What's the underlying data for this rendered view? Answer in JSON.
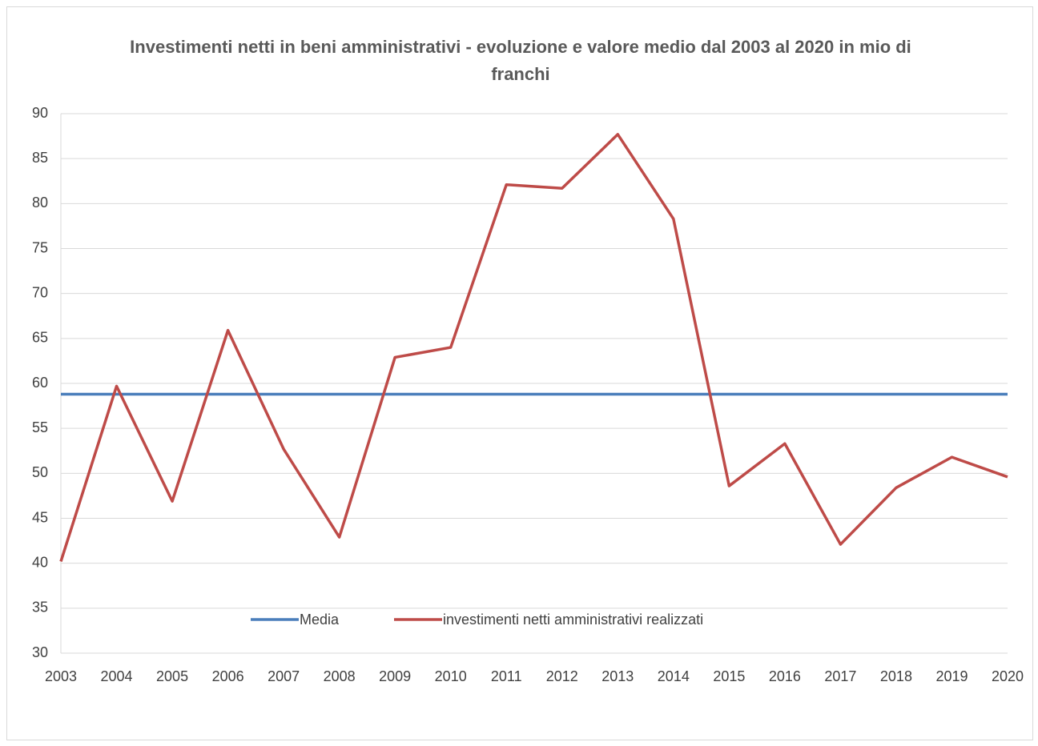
{
  "chart_data": {
    "type": "line",
    "title": "Investimenti netti in beni amministrativi - evoluzione e valore medio dal 2003 al 2020 in mio di franchi",
    "x": [
      2003,
      2004,
      2005,
      2006,
      2007,
      2008,
      2009,
      2010,
      2011,
      2012,
      2013,
      2014,
      2015,
      2016,
      2017,
      2018,
      2019,
      2020
    ],
    "xlim": [
      2003,
      2020
    ],
    "xticks": [
      2003,
      2004,
      2005,
      2006,
      2007,
      2008,
      2009,
      2010,
      2011,
      2012,
      2013,
      2014,
      2015,
      2016,
      2017,
      2018,
      2019,
      2020
    ],
    "ylim": [
      30,
      90
    ],
    "yticks": [
      30,
      35,
      40,
      45,
      50,
      55,
      60,
      65,
      70,
      75,
      80,
      85,
      90
    ],
    "grid": true,
    "legend": "bottom",
    "series": [
      {
        "name": "Media",
        "color": "#4a7ebb",
        "values": [
          58.8,
          58.8,
          58.8,
          58.8,
          58.8,
          58.8,
          58.8,
          58.8,
          58.8,
          58.8,
          58.8,
          58.8,
          58.8,
          58.8,
          58.8,
          58.8,
          58.8,
          58.8
        ]
      },
      {
        "name": "investimenti netti amministrativi realizzati",
        "color": "#be4b48",
        "values": [
          40.2,
          59.7,
          46.9,
          65.9,
          52.7,
          42.9,
          62.9,
          64.0,
          82.1,
          81.7,
          87.7,
          78.3,
          48.6,
          53.3,
          42.1,
          48.4,
          51.8,
          49.6
        ]
      }
    ]
  }
}
